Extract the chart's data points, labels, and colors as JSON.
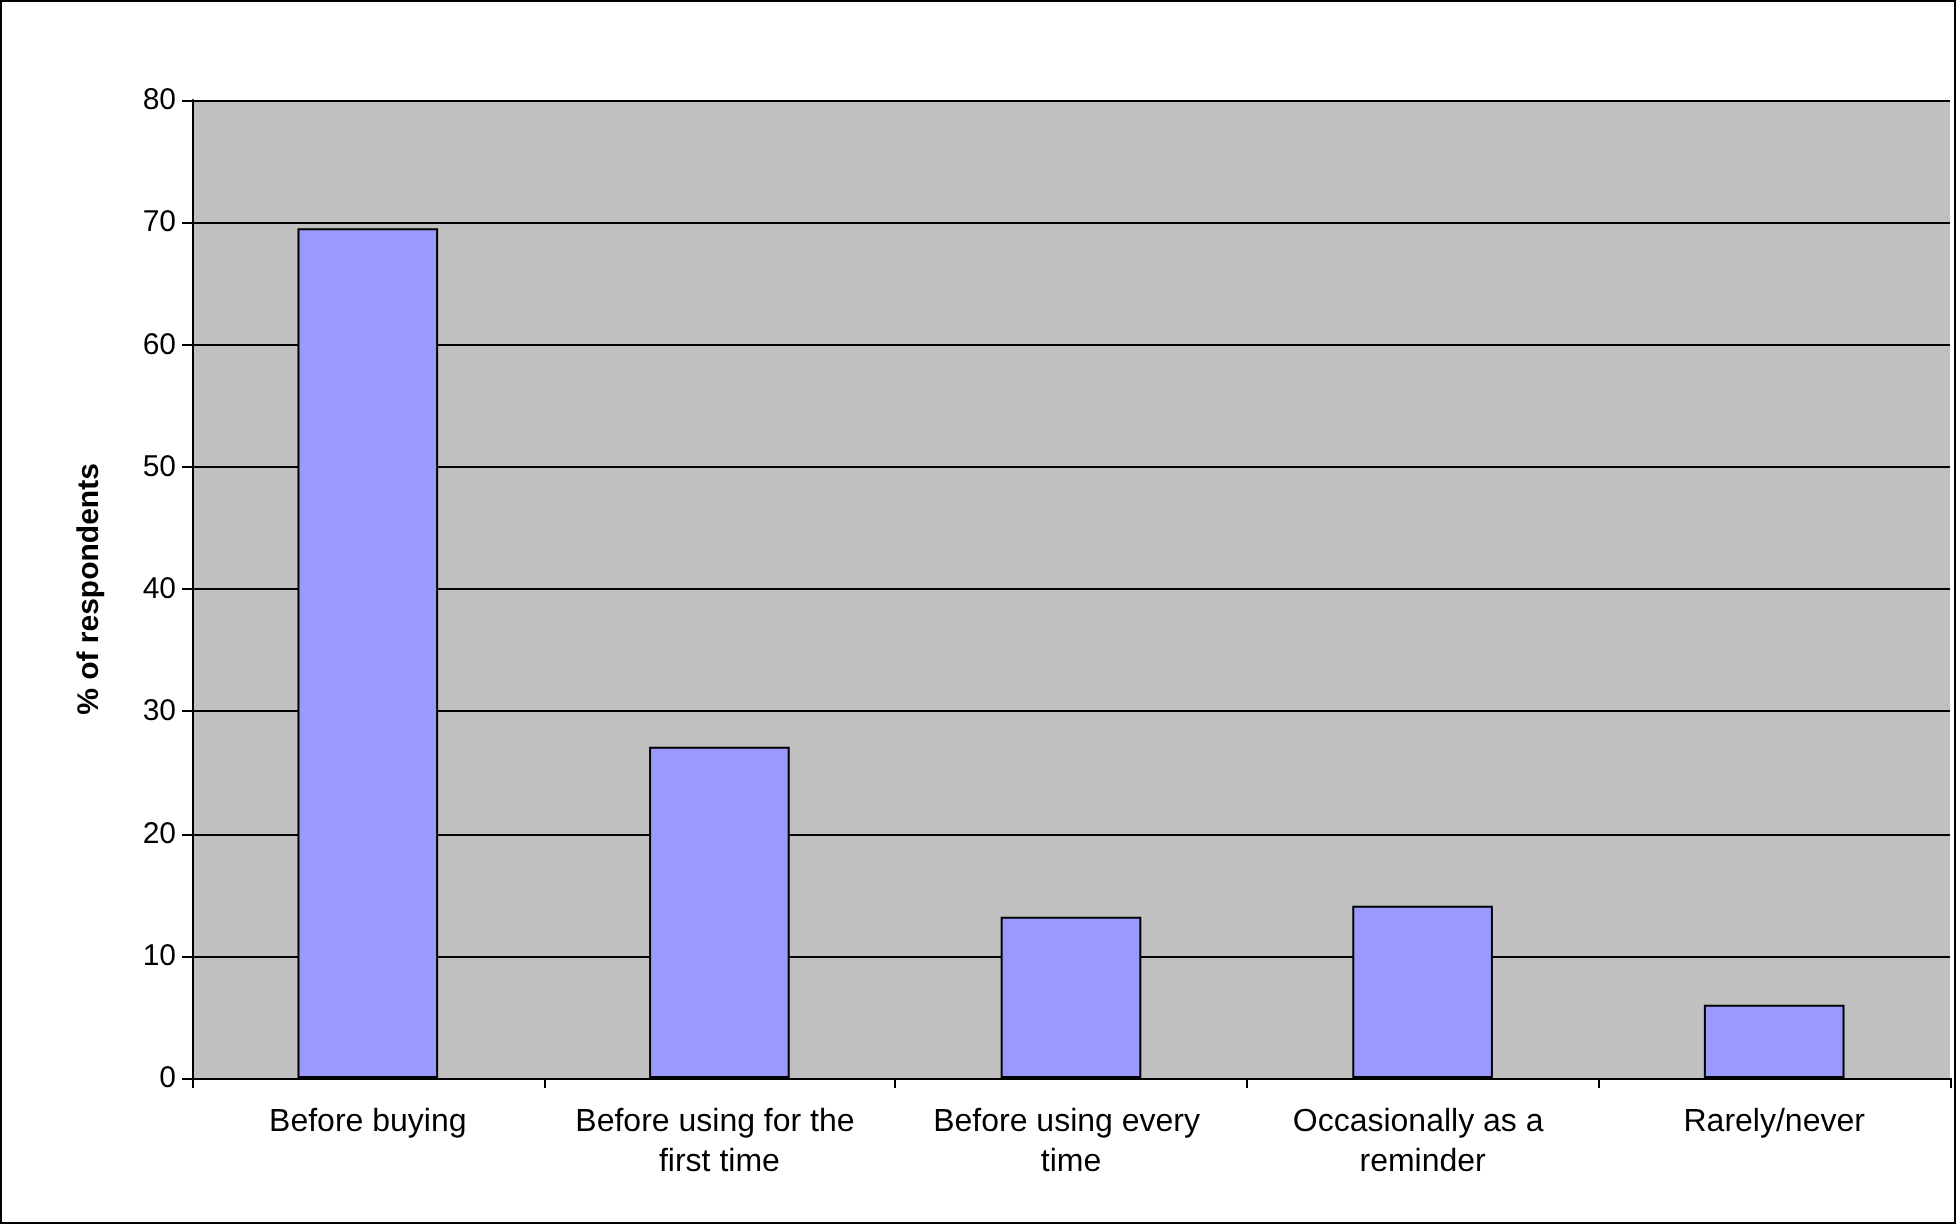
{
  "chart_data": {
    "type": "bar",
    "ylabel": "% of respondents",
    "categories": [
      "Before buying",
      "Before using for the first time",
      "Before using every time",
      "Occasionally as a reminder",
      "Rarely/never"
    ],
    "values": [
      69.5,
      27.1,
      13.2,
      14.1,
      6.0
    ],
    "color": "#9999ff",
    "ylim": [
      0,
      80
    ],
    "yticks": [
      0,
      10,
      20,
      30,
      40,
      50,
      60,
      70,
      80
    ],
    "grid": "y"
  }
}
